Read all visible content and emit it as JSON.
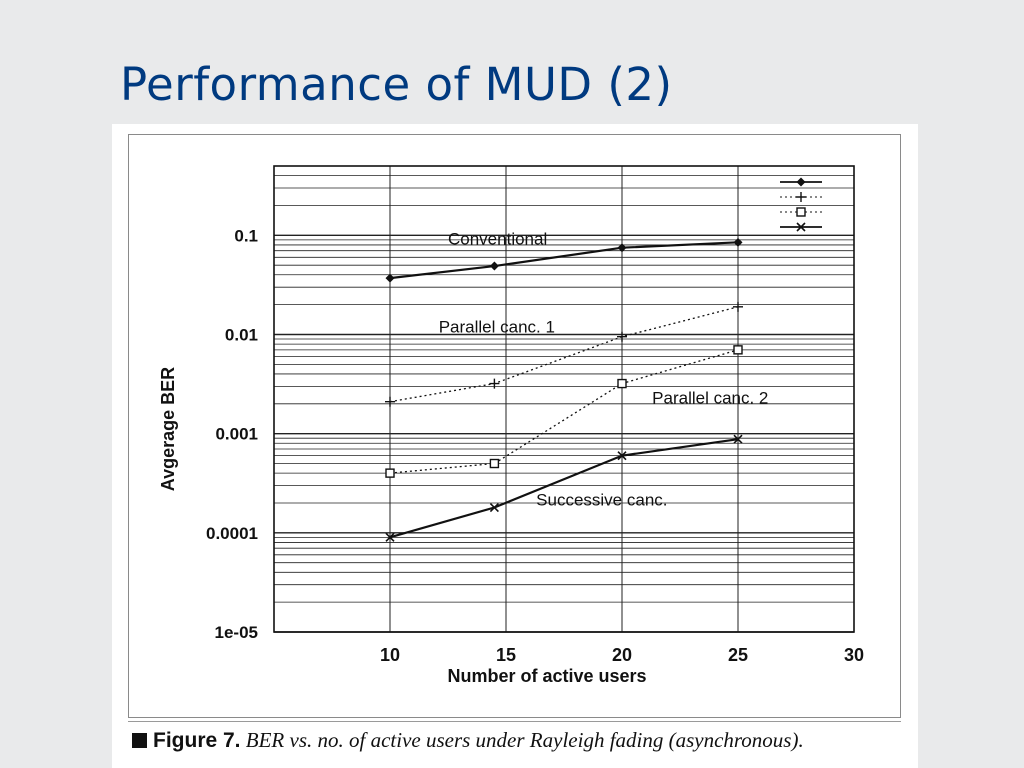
{
  "slide": {
    "title": "Performance of MUD (2)"
  },
  "caption": {
    "label": "Figure 7.",
    "text": "BER vs. no. of active users under Rayleigh fading (asynchronous)."
  },
  "chart_data": {
    "type": "line",
    "xlabel": "Number of active users",
    "ylabel": "Avgerage BER",
    "xlim": [
      5,
      30
    ],
    "ylim": [
      1e-05,
      0.5
    ],
    "yscale": "log",
    "x_ticks": [
      10,
      15,
      20,
      25,
      30
    ],
    "x_tick_labels": [
      "10",
      "15",
      "20",
      "25",
      "30"
    ],
    "y_ticks": [
      0.1,
      0.01,
      0.001,
      0.0001,
      1e-05
    ],
    "y_tick_labels": [
      "0.1",
      "0.01",
      "0.001",
      "0.0001",
      "1e-05"
    ],
    "grid": true,
    "legend": "top-right",
    "series": [
      {
        "label": "Conventional",
        "marker": "diamond",
        "style": "solid",
        "x": [
          10,
          14.5,
          20,
          25
        ],
        "y": [
          0.037,
          0.049,
          0.075,
          0.085
        ]
      },
      {
        "label": "Parallel canc. 1",
        "marker": "plus",
        "style": "dotted",
        "x": [
          10,
          14.5,
          20,
          25
        ],
        "y": [
          0.0021,
          0.0032,
          0.0095,
          0.019
        ]
      },
      {
        "label": "Parallel canc. 2",
        "marker": "square",
        "style": "dotted",
        "x": [
          10,
          14.5,
          20,
          25
        ],
        "y": [
          0.0004,
          0.0005,
          0.0032,
          0.007
        ]
      },
      {
        "label": "Successive canc.",
        "marker": "x",
        "style": "solid",
        "x": [
          10,
          14.5,
          20,
          25
        ],
        "y": [
          9e-05,
          0.00018,
          0.0006,
          0.00088
        ]
      }
    ]
  }
}
